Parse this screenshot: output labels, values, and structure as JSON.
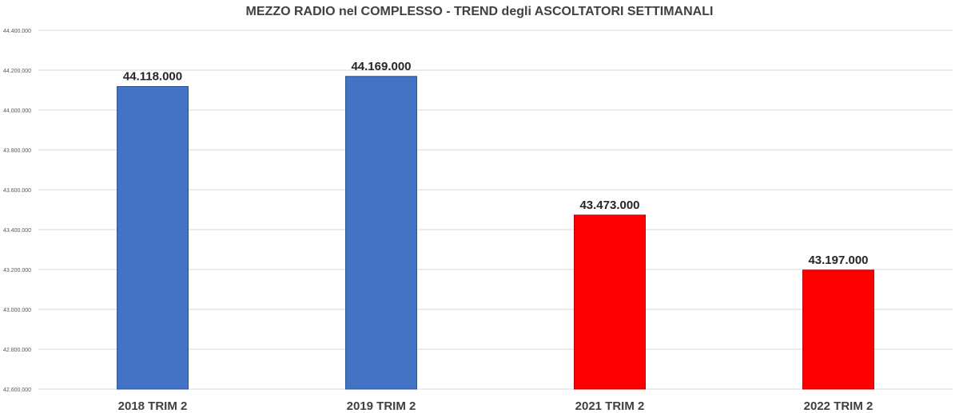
{
  "chart_data": {
    "type": "bar",
    "title": "MEZZO RADIO nel COMPLESSO - TREND degli ASCOLTATORI SETTIMANALI",
    "xlabel": "",
    "ylabel": "",
    "categories": [
      "2018 TRIM 2",
      "2019 TRIM 2",
      "2021 TRIM 2",
      "2022 TRIM 2"
    ],
    "values": [
      44118000,
      44169000,
      43473000,
      43197000
    ],
    "data_labels": [
      "44.118.000",
      "44.169.000",
      "43.473.000",
      "43.197.000"
    ],
    "bar_colors": [
      "#4472C4",
      "#4472C4",
      "#FF0000",
      "#FF0000"
    ],
    "ylim": [
      42600000,
      44400000
    ],
    "yticks": [
      42600000,
      42800000,
      43000000,
      43200000,
      43400000,
      43600000,
      43800000,
      44000000,
      44200000,
      44400000
    ],
    "ytick_labels": [
      "42.600.000",
      "42.800.000",
      "43.000.000",
      "43.200.000",
      "43.400.000",
      "43.600.000",
      "43.800.000",
      "44.000.000",
      "44.200.000",
      "44.400.000"
    ],
    "grid": true,
    "legend": "none"
  }
}
